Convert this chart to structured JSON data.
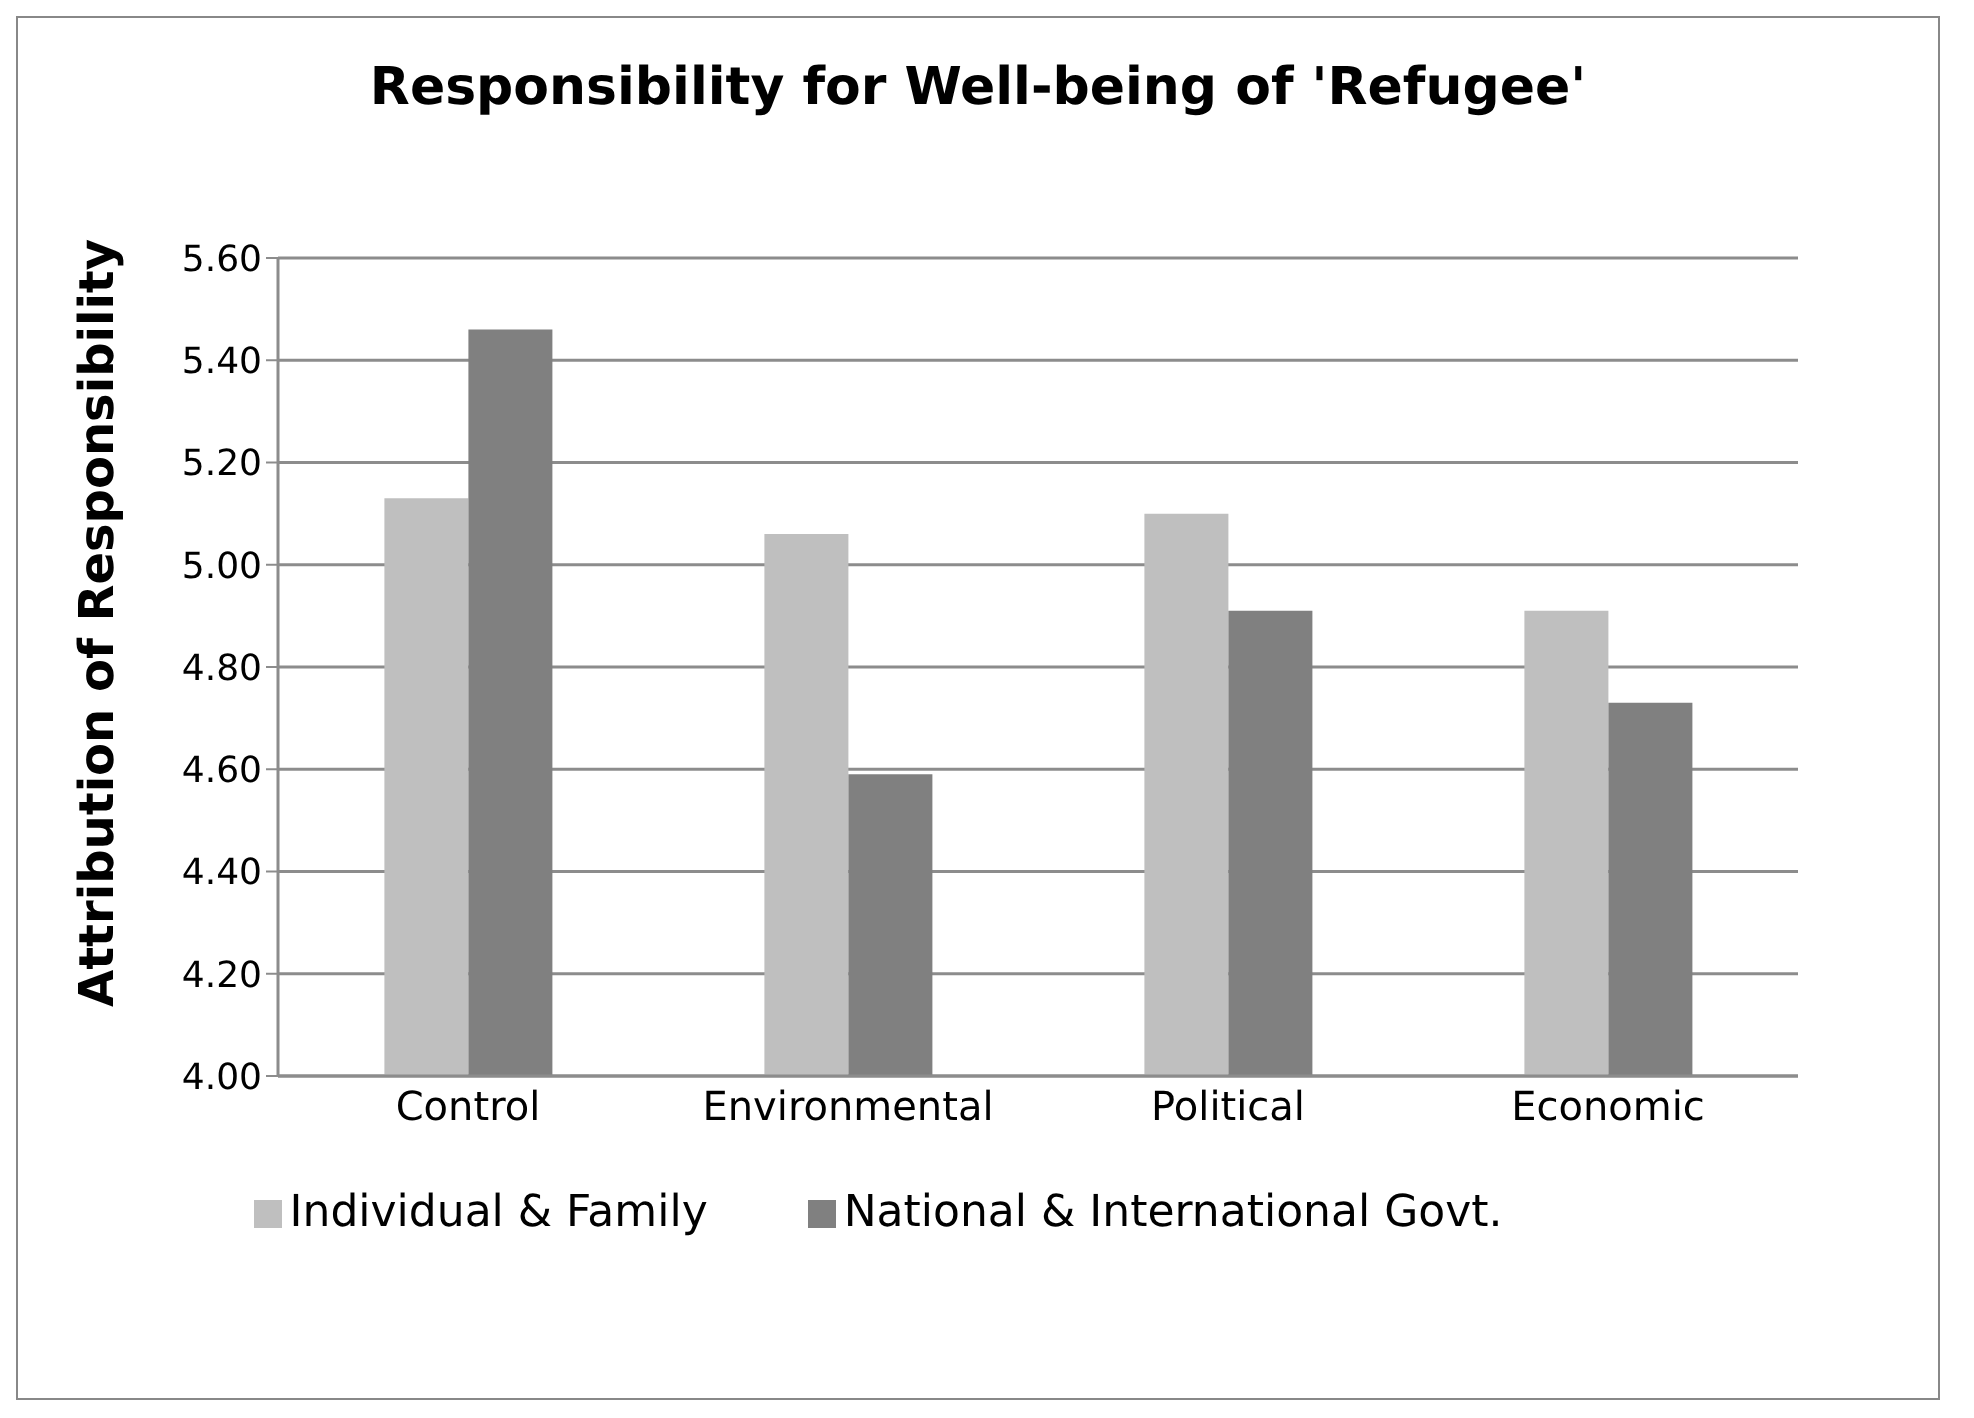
{
  "chart_data": {
    "type": "bar",
    "title": "Responsibility for Well-being of 'Refugee'",
    "ylabel": "Attribution of Responsibility",
    "categories": [
      "Control",
      "Environmental",
      "Political",
      "Economic"
    ],
    "series": [
      {
        "name": "Individual & Family",
        "color": "#bfbfbf",
        "values": [
          5.13,
          5.06,
          5.1,
          4.91
        ]
      },
      {
        "name": "National & International Govt.",
        "color": "#808080",
        "values": [
          5.46,
          4.59,
          4.91,
          4.73
        ]
      }
    ],
    "ylim": [
      4.0,
      5.6
    ],
    "yticks": [
      {
        "value": 4.0,
        "label": "4.00"
      },
      {
        "value": 4.2,
        "label": "4.20"
      },
      {
        "value": 4.4,
        "label": "4.40"
      },
      {
        "value": 4.6,
        "label": "4.60"
      },
      {
        "value": 4.8,
        "label": "4.80"
      },
      {
        "value": 5.0,
        "label": "5.00"
      },
      {
        "value": 5.2,
        "label": "5.20"
      },
      {
        "value": 5.4,
        "label": "5.40"
      },
      {
        "value": 5.6,
        "label": "5.60"
      }
    ],
    "grid": "y",
    "legend": "bottom"
  }
}
